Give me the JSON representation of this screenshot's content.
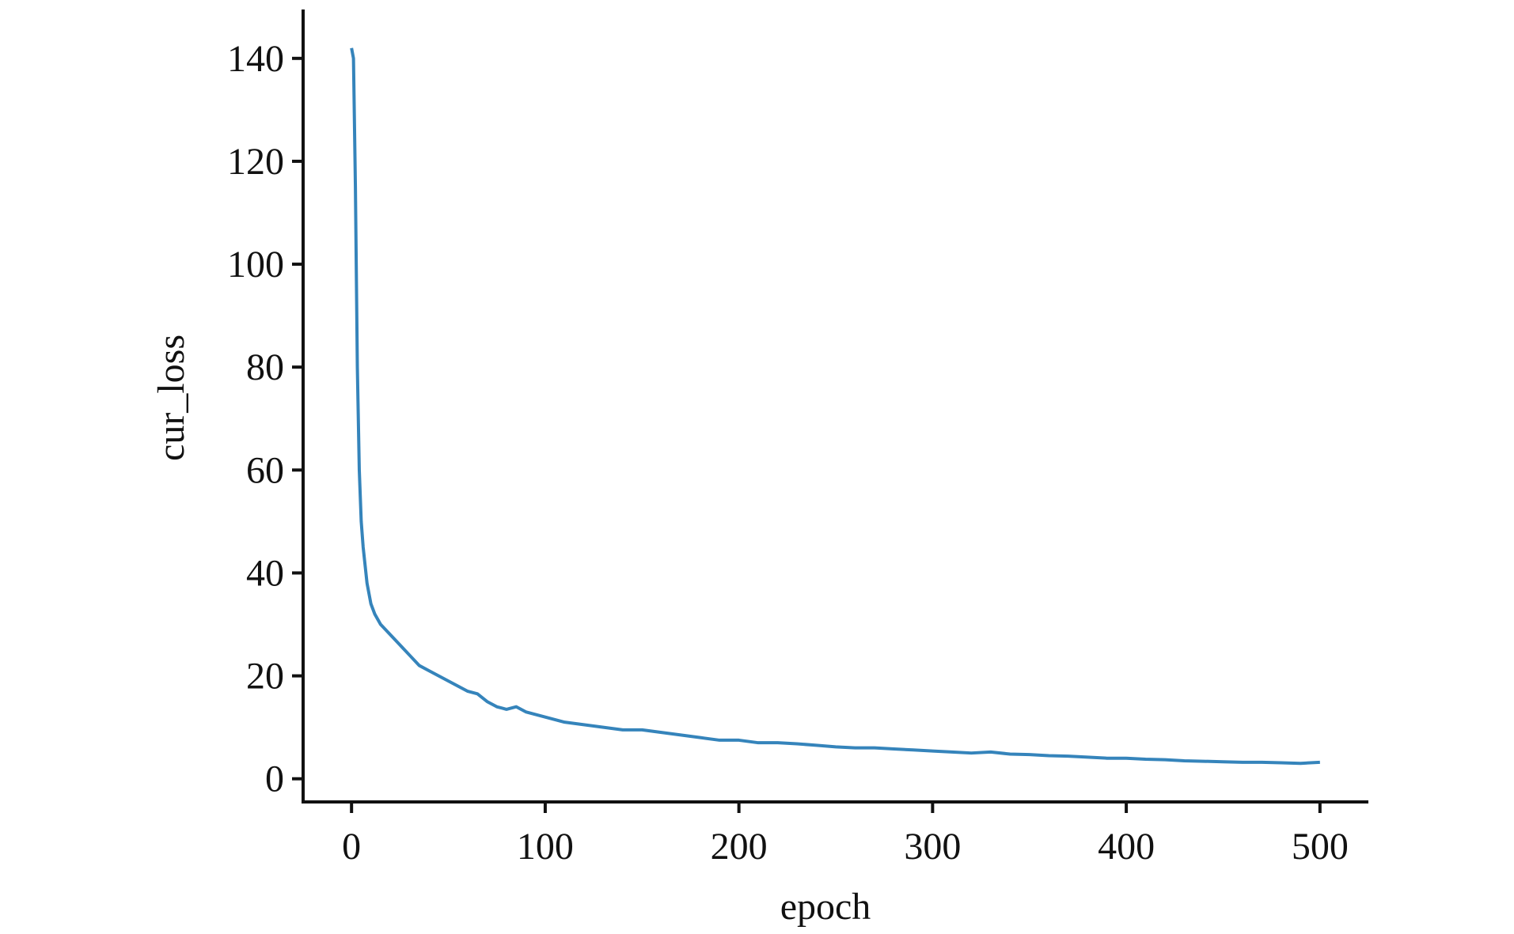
{
  "chart_data": {
    "type": "line",
    "xlabel": "epoch",
    "ylabel": "cur_loss",
    "x": [
      0,
      1,
      2,
      3,
      4,
      5,
      6,
      8,
      10,
      12,
      15,
      20,
      25,
      30,
      35,
      40,
      45,
      50,
      55,
      60,
      65,
      70,
      75,
      80,
      85,
      90,
      95,
      100,
      110,
      120,
      130,
      140,
      150,
      160,
      170,
      180,
      190,
      200,
      210,
      220,
      230,
      240,
      250,
      260,
      270,
      280,
      290,
      300,
      310,
      320,
      330,
      340,
      350,
      360,
      370,
      380,
      390,
      400,
      410,
      420,
      430,
      440,
      450,
      460,
      470,
      480,
      490,
      500
    ],
    "series": [
      {
        "name": "cur_loss",
        "color": "#1f77b4",
        "values": [
          142,
          140,
          115,
          80,
          60,
          50,
          45,
          38,
          34,
          32,
          30,
          28,
          26,
          24,
          22,
          21,
          20,
          19,
          18,
          17,
          16.5,
          15,
          14,
          13.5,
          14,
          13,
          12.5,
          12,
          11,
          10.5,
          10,
          9.5,
          9.5,
          9,
          8.5,
          8,
          7.5,
          7.5,
          7,
          7,
          6.8,
          6.5,
          6.2,
          6,
          6,
          5.8,
          5.6,
          5.4,
          5.2,
          5,
          5.2,
          4.8,
          4.7,
          4.5,
          4.4,
          4.2,
          4,
          4,
          3.8,
          3.7,
          3.5,
          3.4,
          3.3,
          3.2,
          3.2,
          3.1,
          3,
          3.2
        ]
      }
    ],
    "xlim": [
      -25,
      525
    ],
    "ylim": [
      -4.5,
      149.5
    ],
    "xticks": [
      0,
      100,
      200,
      300,
      400,
      500
    ],
    "yticks": [
      0,
      20,
      40,
      60,
      80,
      100,
      120,
      140
    ],
    "grid": false
  }
}
